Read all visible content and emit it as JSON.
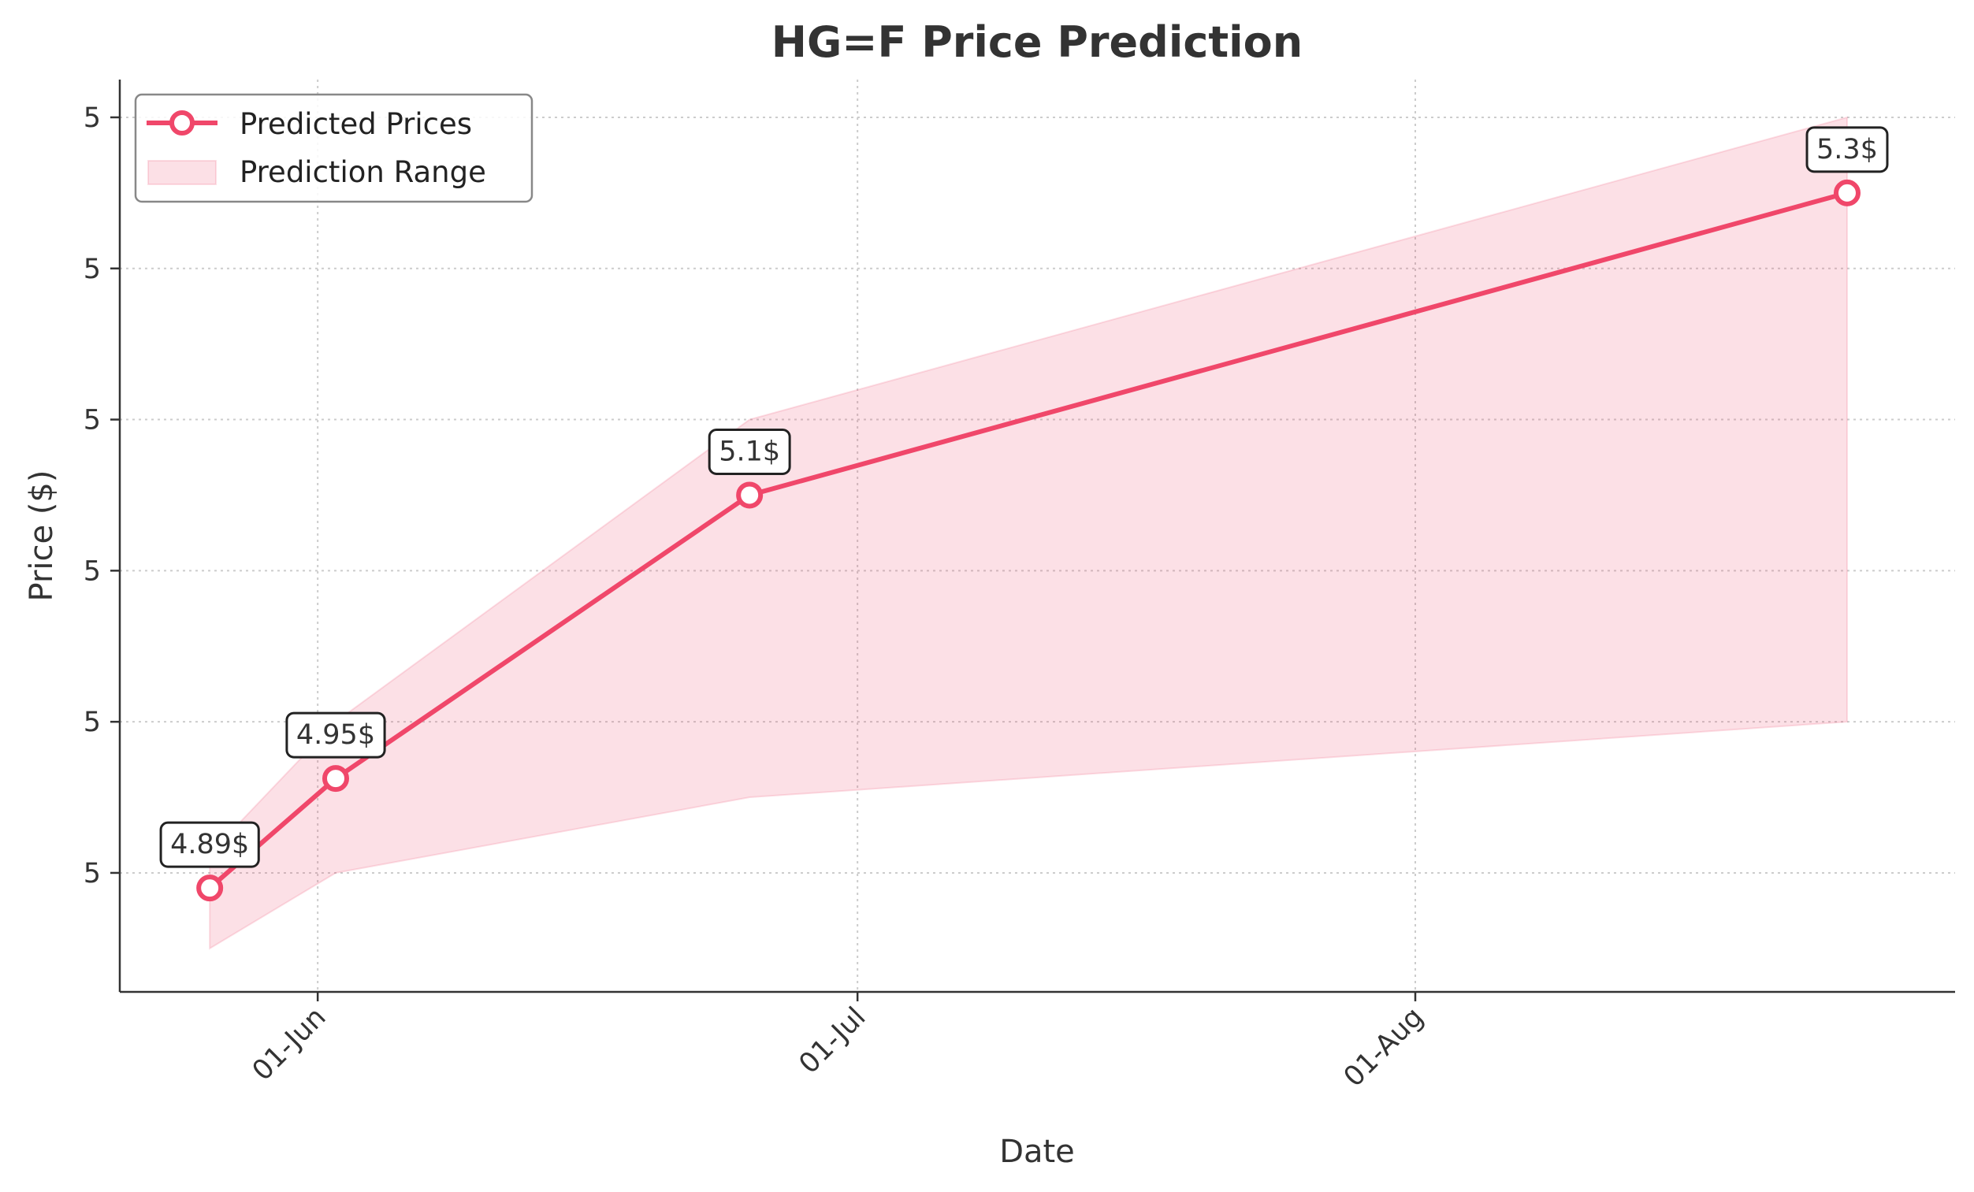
{
  "chart_data": {
    "type": "line",
    "title": "HG=F Price Prediction",
    "xlabel": "Date",
    "ylabel": "Price ($)",
    "x_ticks": [
      {
        "date": "2024-06-01",
        "label": "01-Jun"
      },
      {
        "date": "2024-07-01",
        "label": "01-Jul"
      },
      {
        "date": "2024-08-01",
        "label": "01-Aug"
      }
    ],
    "y_ticks": [
      {
        "value": 4.9,
        "label": "5"
      },
      {
        "value": 4.98,
        "label": "5"
      },
      {
        "value": 5.06,
        "label": "5"
      },
      {
        "value": 5.14,
        "label": "5"
      },
      {
        "value": 5.22,
        "label": "5"
      },
      {
        "value": 5.3,
        "label": "5"
      }
    ],
    "xlim": [
      "2024-05-21",
      "2024-08-31"
    ],
    "ylim": [
      4.837,
      5.32
    ],
    "series": [
      {
        "name": "Predicted Prices",
        "kind": "line",
        "color": "#f0476a",
        "points": [
          {
            "date": "2024-05-26",
            "value": 4.892,
            "label": "4.89$"
          },
          {
            "date": "2024-06-02",
            "value": 4.95,
            "label": "4.95$"
          },
          {
            "date": "2024-06-25",
            "value": 5.1,
            "label": "5.1$"
          },
          {
            "date": "2024-08-25",
            "value": 5.26,
            "label": "5.3$"
          }
        ]
      },
      {
        "name": "Prediction Range",
        "kind": "band",
        "color": "#f0476a",
        "upper": [
          {
            "date": "2024-05-26",
            "value": 4.91
          },
          {
            "date": "2024-06-02",
            "value": 4.98
          },
          {
            "date": "2024-06-25",
            "value": 5.14
          },
          {
            "date": "2024-08-25",
            "value": 5.3
          }
        ],
        "lower": [
          {
            "date": "2024-05-26",
            "value": 4.86
          },
          {
            "date": "2024-06-02",
            "value": 4.9
          },
          {
            "date": "2024-06-25",
            "value": 4.94
          },
          {
            "date": "2024-08-25",
            "value": 4.98
          }
        ]
      }
    ],
    "legend_position": "top-left",
    "grid": true
  }
}
